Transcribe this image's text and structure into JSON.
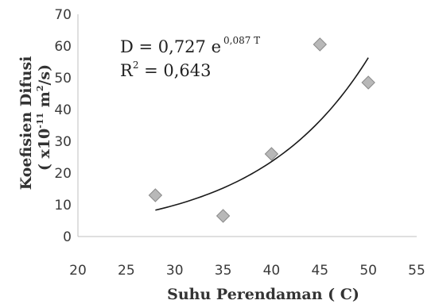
{
  "chart_data": {
    "type": "scatter",
    "title": "",
    "xlabel": "Suhu Perendaman ( C)",
    "ylabel_line1": "Koefisien Difusi",
    "ylabel_line2_prefix": "( x10",
    "ylabel_line2_exp1": "-11",
    "ylabel_line2_mid": " m",
    "ylabel_line2_exp2": "2",
    "ylabel_line2_suffix": "/s)",
    "xlim": [
      20,
      55
    ],
    "ylim": [
      0,
      70
    ],
    "x_ticks": [
      "20",
      "25",
      "30",
      "35",
      "40",
      "45",
      "50",
      "55"
    ],
    "y_ticks": [
      "0",
      "10",
      "20",
      "30",
      "40",
      "50",
      "60",
      "70"
    ],
    "grid": false,
    "points": [
      {
        "x": 28,
        "y": 13
      },
      {
        "x": 35,
        "y": 6.5
      },
      {
        "x": 40,
        "y": 26
      },
      {
        "x": 45,
        "y": 60.5
      },
      {
        "x": 50,
        "y": 48.5
      }
    ],
    "trendline": {
      "type": "exponential",
      "a": 0.727,
      "b": 0.087,
      "x_range": [
        28,
        50
      ]
    },
    "annotation": {
      "eq_main": "D = 0,727 e",
      "eq_exp": "0,087 T",
      "r2_R": "R",
      "r2_sup": "2",
      "r2_rest": " = 0,643"
    },
    "marker_fill": "#b8b8b8",
    "marker_stroke": "#8a8a8a",
    "line_color": "#1a1a1a"
  }
}
